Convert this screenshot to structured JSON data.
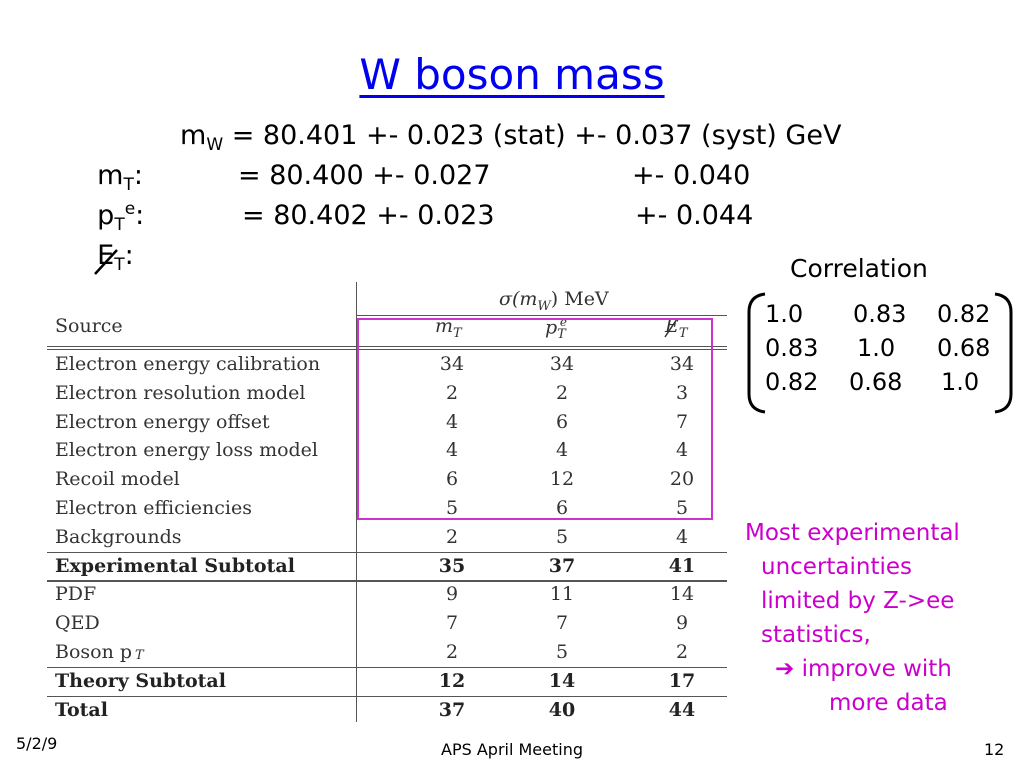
{
  "title": "W boson mass",
  "results": [
    {
      "method_main": "m",
      "method_sub": "T",
      "method_sup": "",
      "method_suffix": ":",
      "lhs_main": "m",
      "lhs_sub": "W",
      "value": " = 80.401 +- 0.023 (stat) +- 0.037 (syst) GeV"
    },
    {
      "method_main": "p",
      "method_sub": "T",
      "method_sup": "e",
      "method_suffix": ":",
      "value": "= 80.400 +- 0.027",
      "syst": "+- 0.040"
    },
    {
      "method_main": "E",
      "method_sub": "T",
      "method_sup": "",
      "method_suffix": ":",
      "value": "= 80.402 +- 0.023",
      "syst": "+- 0.044"
    }
  ],
  "correlation": {
    "heading": "Correlation",
    "matrix": [
      [
        "1.0",
        "0.83",
        "0.82"
      ],
      [
        "0.83",
        "1.0",
        "0.68"
      ],
      [
        "0.82",
        "0.68",
        "1.0"
      ]
    ]
  },
  "table": {
    "source_header": "Source",
    "group_header": "σ(m",
    "group_header_sub": "W",
    "group_header_tail": ") MeV",
    "col_headers": [
      {
        "main": "m",
        "sub": "T",
        "sup": ""
      },
      {
        "main": "p",
        "sub": "T",
        "sup": "e"
      },
      {
        "main": "E",
        "sub": "T",
        "sup": ""
      }
    ],
    "rows": [
      {
        "label": "Electron energy calibration",
        "values": [
          "34",
          "34",
          "34"
        ],
        "bold": false
      },
      {
        "label": "Electron resolution model",
        "values": [
          "2",
          "2",
          "3"
        ],
        "bold": false
      },
      {
        "label": "Electron energy offset",
        "values": [
          "4",
          "6",
          "7"
        ],
        "bold": false
      },
      {
        "label": "Electron energy loss model",
        "values": [
          "4",
          "4",
          "4"
        ],
        "bold": false
      },
      {
        "label": "Recoil model",
        "values": [
          "6",
          "12",
          "20"
        ],
        "bold": false
      },
      {
        "label": "Electron efficiencies",
        "values": [
          "5",
          "6",
          "5"
        ],
        "bold": false
      },
      {
        "label": "Backgrounds",
        "values": [
          "2",
          "5",
          "4"
        ],
        "bold": false
      },
      {
        "label": "Experimental Subtotal",
        "values": [
          "35",
          "37",
          "41"
        ],
        "bold": true
      },
      {
        "label": "PDF",
        "values": [
          "9",
          "11",
          "14"
        ],
        "bold": false
      },
      {
        "label": "QED",
        "values": [
          "7",
          "7",
          "9"
        ],
        "bold": false
      },
      {
        "label": "Boson p",
        "label_sub": "T",
        "values": [
          "2",
          "5",
          "2"
        ],
        "bold": false
      },
      {
        "label": "Theory Subtotal",
        "values": [
          "12",
          "14",
          "17"
        ],
        "bold": true
      },
      {
        "label": "Total",
        "values": [
          "37",
          "40",
          "44"
        ],
        "bold": true
      }
    ],
    "highlight_color": "#cc33cc"
  },
  "note": {
    "lines": [
      "Most experimental",
      "uncertainties",
      "limited by Z->ee",
      "statistics,"
    ],
    "arrow": "➔",
    "arrow_text": "improve with",
    "last_line": "more data",
    "color": "#cc00cc"
  },
  "footer": {
    "date": "5/2/9",
    "meeting": "APS April Meeting",
    "page": "12"
  },
  "colors": {
    "title": "#0000ee",
    "highlight": "#cc33cc",
    "note": "#cc00cc"
  }
}
